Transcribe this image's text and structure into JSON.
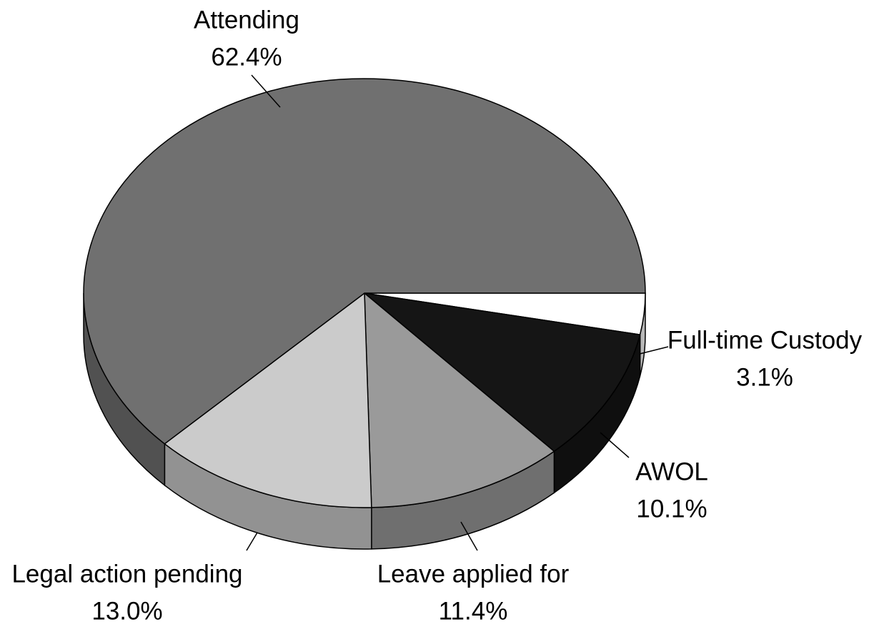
{
  "chart_data": {
    "type": "pie",
    "categories": [
      "Full-time Custody",
      "AWOL",
      "Leave applied for",
      "Legal action pending",
      "Attending"
    ],
    "values": [
      3.1,
      10.1,
      11.4,
      13.0,
      62.4
    ],
    "value_labels": [
      "3.1%",
      "10.1%",
      "11.4%",
      "13.0%",
      "62.4%"
    ],
    "colors": [
      "#ffffff",
      "#151515",
      "#9a9a9a",
      "#cbcbcb",
      "#707070"
    ]
  }
}
